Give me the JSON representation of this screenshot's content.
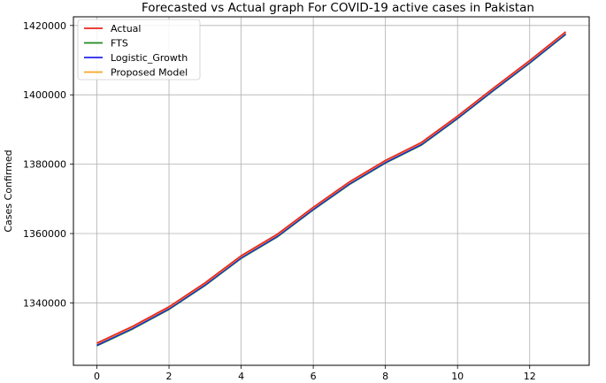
{
  "chart_data": {
    "type": "line",
    "title": "Forecasted vs Actual graph For COVID-19 active cases in Pakistan",
    "xlabel": "",
    "ylabel": "Cases Confirmed",
    "xlim": [
      -0.65,
      13.65
    ],
    "ylim": [
      1322000,
      1422500
    ],
    "xticks": [
      0,
      2,
      4,
      6,
      8,
      10,
      12
    ],
    "yticks": [
      1340000,
      1360000,
      1380000,
      1400000,
      1420000
    ],
    "grid": true,
    "legend": "top-left",
    "x": [
      0,
      1,
      2,
      3,
      4,
      5,
      6,
      7,
      8,
      9,
      10,
      11,
      12,
      13
    ],
    "series": [
      {
        "name": "Actual",
        "color": "#e8251f",
        "values": [
          1328400,
          1333300,
          1338900,
          1345800,
          1353600,
          1359800,
          1367600,
          1374900,
          1381100,
          1386300,
          1393900,
          1402000,
          1409900,
          1418200
        ]
      },
      {
        "name": "FTS",
        "color": "#1f8a1f",
        "values": [
          1327600,
          1332500,
          1338100,
          1345000,
          1352800,
          1359000,
          1366800,
          1374100,
          1380300,
          1385500,
          1393100,
          1401200,
          1409100,
          1417400
        ]
      },
      {
        "name": "Logistic_Growth",
        "color": "#2222ee",
        "values": [
          1327800,
          1332700,
          1338300,
          1345200,
          1353000,
          1359200,
          1367000,
          1374300,
          1380500,
          1385700,
          1393300,
          1401400,
          1409300,
          1417600
        ]
      },
      {
        "name": "Proposed Model",
        "color": "#f5a623",
        "values": [
          1328200,
          1333100,
          1338700,
          1345600,
          1353400,
          1359600,
          1367400,
          1374700,
          1380900,
          1386100,
          1393700,
          1401800,
          1409700,
          1418000
        ]
      }
    ]
  }
}
